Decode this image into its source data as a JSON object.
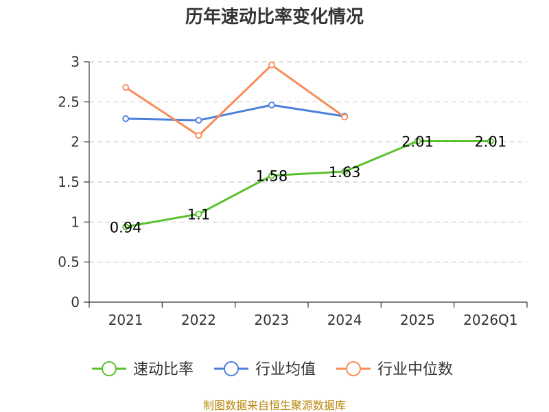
{
  "chart_data": {
    "type": "line",
    "title": "历年速动比率变化情况",
    "categories": [
      "2021",
      "2022",
      "2023",
      "2024",
      "2025",
      "2026Q1"
    ],
    "ylim": [
      0,
      3
    ],
    "yticks": [
      0,
      0.5,
      1,
      1.5,
      2,
      2.5,
      3
    ],
    "ytick_labels": [
      "0",
      "0.5",
      "1",
      "1.5",
      "2",
      "2.5",
      "3"
    ],
    "grid": true,
    "legend_position": "bottom",
    "series": [
      {
        "name": "速动比率",
        "color": "#5ac02c",
        "values": [
          0.94,
          1.1,
          1.58,
          1.63,
          2.01,
          2.01
        ],
        "data_labels": [
          "0.94",
          "1.1",
          "1.58",
          "1.63",
          "2.01",
          "2.01"
        ]
      },
      {
        "name": "行业均值",
        "color": "#4a7fdb",
        "values": [
          2.29,
          2.27,
          2.46,
          2.32,
          null,
          null
        ]
      },
      {
        "name": "行业中位数",
        "color": "#f98b58",
        "values": [
          2.68,
          2.08,
          2.96,
          2.31,
          null,
          null
        ]
      }
    ]
  },
  "footer": {
    "source": "制图数据来自恒生聚源数据库"
  }
}
